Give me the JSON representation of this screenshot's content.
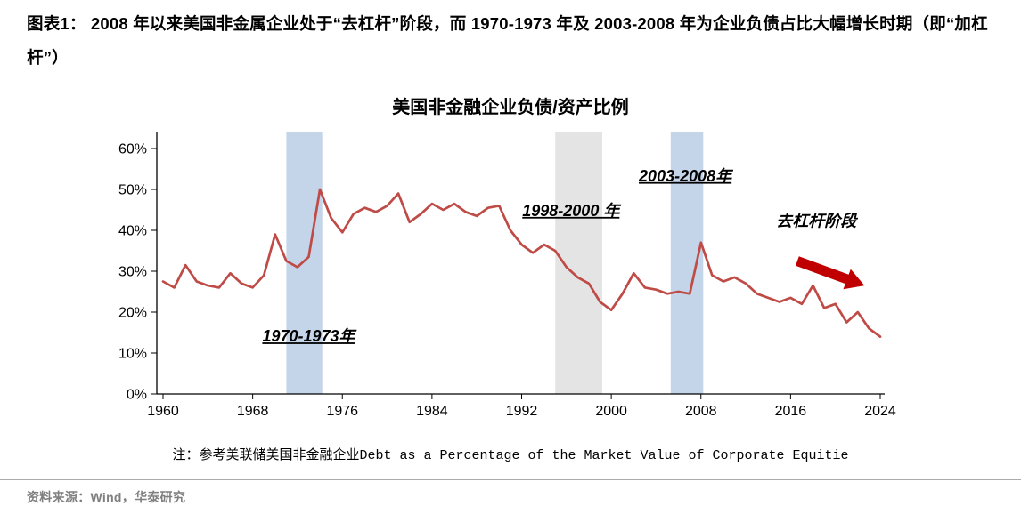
{
  "header": {
    "title": "图表1：  2008 年以来美国非金属企业处于“去杠杆”阶段，而 1970-1973 年及 2003-2008 年为企业负债占比大幅增长时期（即“加杠杆”）"
  },
  "chart": {
    "title": "美国非金融企业负债/资产比例"
  },
  "note": {
    "text": "注：参考美联储美国非金融企业Debt as a Percentage of the Market Value of Corporate Equitie"
  },
  "source": {
    "text": "资料来源：Wind，华泰研究"
  },
  "chart_data": {
    "type": "line",
    "title": "美国非金融企业负债/资产比例",
    "xlabel": "",
    "ylabel": "",
    "ylim": [
      0,
      60
    ],
    "y_ticks": [
      0,
      10,
      20,
      30,
      40,
      50,
      60
    ],
    "y_tick_suffix": "%",
    "x_ticks": [
      1960,
      1968,
      1976,
      1984,
      1992,
      2000,
      2008,
      2016,
      2024
    ],
    "line_color": "#BF4B47",
    "grid": false,
    "legend": "none",
    "x": [
      1960,
      1961,
      1962,
      1963,
      1964,
      1965,
      1966,
      1967,
      1968,
      1969,
      1970,
      1971,
      1972,
      1973,
      1974,
      1975,
      1976,
      1977,
      1978,
      1979,
      1980,
      1981,
      1982,
      1983,
      1984,
      1985,
      1986,
      1987,
      1988,
      1989,
      1990,
      1991,
      1992,
      1993,
      1994,
      1995,
      1996,
      1997,
      1998,
      1999,
      2000,
      2001,
      2002,
      2003,
      2004,
      2005,
      2006,
      2007,
      2008,
      2009,
      2010,
      2011,
      2012,
      2013,
      2014,
      2015,
      2016,
      2017,
      2018,
      2019,
      2020,
      2021,
      2022,
      2023,
      2024
    ],
    "values": [
      27.5,
      26,
      31.5,
      27.5,
      26.5,
      26,
      29.5,
      27,
      26,
      29,
      39,
      32.5,
      31,
      33.5,
      50,
      43,
      39.5,
      44,
      45.5,
      44.5,
      46,
      49,
      42,
      44,
      46.5,
      45,
      46.5,
      44.5,
      43.5,
      45.5,
      46,
      40,
      36.5,
      34.5,
      36.5,
      35,
      31,
      28.5,
      27,
      22.5,
      20.5,
      24.5,
      29.5,
      26,
      25.5,
      24.5,
      25,
      24.5,
      37,
      29,
      27.5,
      28.5,
      27,
      24.5,
      23.5,
      22.5,
      23.5,
      22,
      26.5,
      21,
      22,
      17.5,
      20,
      16,
      14
    ],
    "bands": [
      {
        "period": "1970-1973",
        "from": 1971,
        "to": 1974.2,
        "color": "#C4D4E9"
      },
      {
        "period": "1998-2000",
        "from": 1995,
        "to": 1999.2,
        "color": "#E4E4E4"
      },
      {
        "period": "2003-2008",
        "from": 2005.3,
        "to": 2008.2,
        "color": "#C4D4E9"
      }
    ],
    "annotations": [
      {
        "text": "1970-1973年",
        "x": 1973,
        "y": 12.8,
        "color": "#2020CC",
        "underline": true
      },
      {
        "text": "1998-2000 年",
        "x": 1996.4,
        "y": 43.5,
        "color": "#111111",
        "underline": true
      },
      {
        "text": "2003-2008年",
        "x": 2006.6,
        "y": 52,
        "color": "#2020CC",
        "underline": true
      },
      {
        "text": "去杠杆阶段",
        "x": 2018.3,
        "y": 41,
        "color": "#C00000",
        "underline": false
      }
    ],
    "arrow": {
      "x1": 2016.6,
      "y1": 32.5,
      "x2": 2022.6,
      "y2": 26.5,
      "color": "#C00000"
    }
  }
}
